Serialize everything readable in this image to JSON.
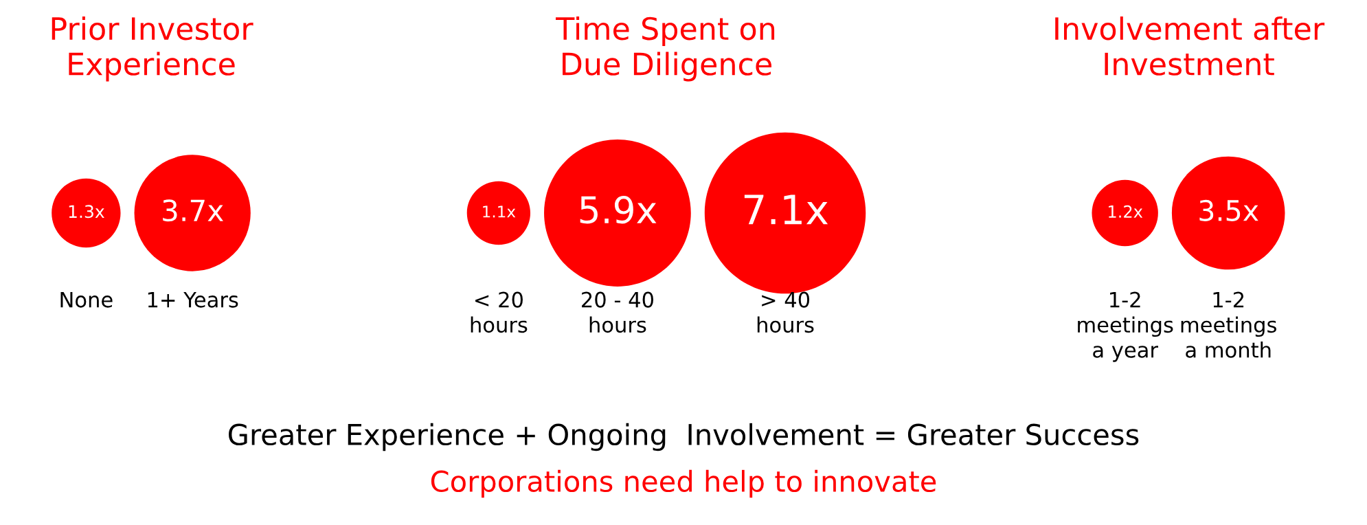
{
  "chart_data": [
    {
      "type": "other",
      "title": "Prior Investor\nExperience",
      "categories": [
        "None",
        "1+ Years"
      ],
      "values": [
        1.3,
        3.7
      ],
      "value_labels": [
        "1.3x",
        "3.7x"
      ],
      "color": "#ff0000"
    },
    {
      "type": "other",
      "title": "Time Spent on\nDue Diligence",
      "categories": [
        "< 20\nhours",
        "20 - 40\nhours",
        "> 40\nhours"
      ],
      "values": [
        1.1,
        5.9,
        7.1
      ],
      "value_labels": [
        "1.1x",
        "5.9x",
        "7.1x"
      ],
      "color": "#ff0000"
    },
    {
      "type": "other",
      "title": "Involvement after\nInvestment",
      "categories": [
        "1-2\nmeetings\na year",
        "1-2\nmeetings\na month"
      ],
      "values": [
        1.2,
        3.5
      ],
      "value_labels": [
        "1.2x",
        "3.5x"
      ],
      "color": "#ff0000"
    },
    {
      "type": "other",
      "annotations": [
        "Greater Experience + Ongoing  Involvement = Greater Success",
        "Corporations need help to innovate"
      ],
      "colors": [
        "#000000",
        "#ff0000"
      ]
    }
  ]
}
